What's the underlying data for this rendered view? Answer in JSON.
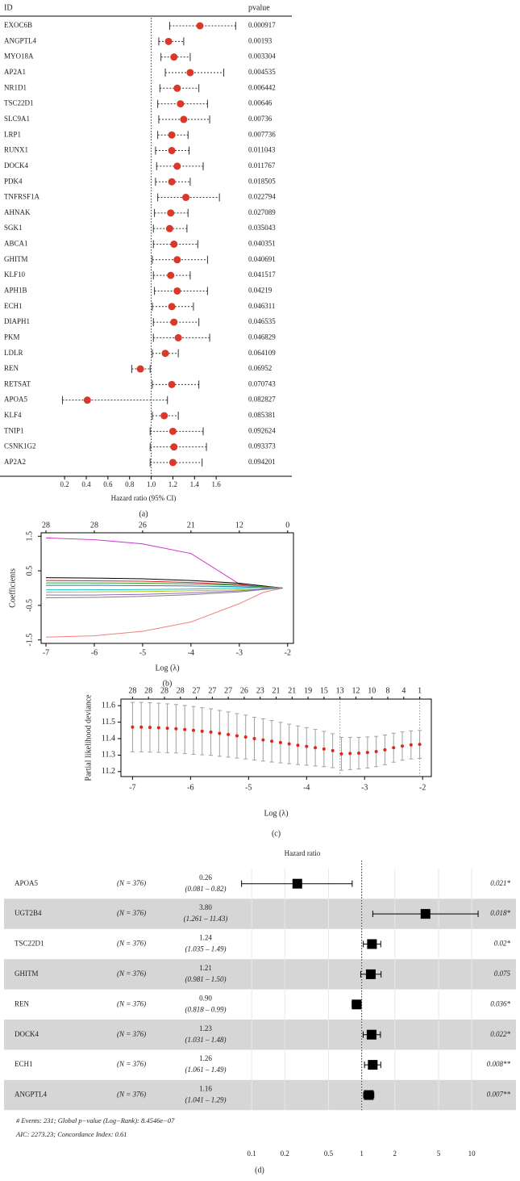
{
  "chart_data": [
    {
      "type": "forest",
      "header": [
        "ID",
        "pvalue"
      ],
      "categories": [
        "EXOC6B",
        "ANGPTL4",
        "MYO18A",
        "AP2A1",
        "NR1D1",
        "TSC22D1",
        "SLC9A1",
        "LRP1",
        "RUNX1",
        "DOCK4",
        "PDK4",
        "TNFRSF1A",
        "AHNAK",
        "SGK1",
        "ABCA1",
        "GHITM",
        "KLF10",
        "APH1B",
        "ECH1",
        "DIAPH1",
        "PKM",
        "LDLR",
        "REN",
        "RETSAT",
        "APOA5",
        "KLF4",
        "TNIP1",
        "CSNK1G2",
        "AP2A2"
      ],
      "pvalues": [
        0.000917,
        0.00193,
        0.003304,
        0.004535,
        0.006442,
        0.00646,
        0.00736,
        0.007736,
        0.011043,
        0.011767,
        0.018505,
        0.022794,
        0.027089,
        0.035043,
        0.040351,
        0.040691,
        0.041517,
        0.04219,
        0.046311,
        0.046535,
        0.046829,
        0.064109,
        0.06952,
        0.070743,
        0.082827,
        0.085381,
        0.092624,
        0.093373,
        0.094201
      ],
      "values": [
        1.45,
        1.16,
        1.21,
        1.36,
        1.24,
        1.27,
        1.3,
        1.19,
        1.19,
        1.24,
        1.19,
        1.32,
        1.18,
        1.17,
        1.21,
        1.24,
        1.18,
        1.24,
        1.19,
        1.21,
        1.25,
        1.13,
        0.9,
        1.19,
        0.41,
        1.12,
        1.2,
        1.21,
        1.2
      ],
      "lower": [
        1.17,
        1.07,
        1.09,
        1.13,
        1.08,
        1.06,
        1.07,
        1.06,
        1.04,
        1.05,
        1.04,
        1.06,
        1.03,
        1.02,
        1.02,
        1.01,
        1.02,
        1.03,
        1.01,
        1.02,
        1.02,
        1.01,
        0.82,
        1.01,
        0.18,
        1.01,
        0.99,
        0.99,
        0.99
      ],
      "upper": [
        1.78,
        1.3,
        1.36,
        1.67,
        1.44,
        1.52,
        1.54,
        1.34,
        1.35,
        1.48,
        1.36,
        1.63,
        1.34,
        1.33,
        1.43,
        1.52,
        1.36,
        1.52,
        1.39,
        1.44,
        1.54,
        1.25,
        0.99,
        1.44,
        1.15,
        1.25,
        1.48,
        1.51,
        1.47
      ],
      "color": "#d9382a",
      "ref": 1,
      "xlim": [
        0.05,
        1.8
      ],
      "xticks": [
        0.2,
        0.4,
        0.6,
        0.8,
        {
          "value": 1,
          "label": "1.0"
        },
        1.2,
        1.4,
        1.6
      ],
      "xlabel": "Hazard ratio (95% CI)",
      "label": "(a)"
    },
    {
      "type": "line",
      "x": [
        -7,
        -6,
        -5,
        -4,
        -3,
        -2.5,
        -2.1
      ],
      "series": [
        {
          "color": "#cc33cc",
          "values": [
            1.45,
            1.4,
            1.28,
            1.0,
            0.12,
            0,
            0
          ]
        },
        {
          "color": "#f08080",
          "values": [
            -1.42,
            -1.38,
            -1.25,
            -0.98,
            -0.45,
            -0.12,
            0
          ]
        },
        {
          "color": "#000000",
          "values": [
            0.3,
            0.29,
            0.27,
            0.22,
            0.14,
            0.06,
            0
          ]
        },
        {
          "color": "#e41a1c",
          "values": [
            0.22,
            0.21,
            0.2,
            0.16,
            0.1,
            0.04,
            0
          ]
        },
        {
          "color": "#33a02c",
          "values": [
            0.15,
            0.15,
            0.14,
            0.12,
            0.08,
            0.04,
            0
          ]
        },
        {
          "color": "#1f78b4",
          "values": [
            0.08,
            0.08,
            0.07,
            0.06,
            0.04,
            0.02,
            0
          ]
        },
        {
          "color": "#17becf",
          "values": [
            -0.05,
            -0.05,
            -0.04,
            -0.03,
            0,
            0.02,
            0
          ]
        },
        {
          "color": "#bcbd22",
          "values": [
            -0.12,
            -0.11,
            -0.1,
            -0.08,
            -0.05,
            -0.02,
            0
          ]
        },
        {
          "color": "#9467bd",
          "values": [
            -0.2,
            -0.2,
            -0.18,
            -0.14,
            -0.08,
            -0.03,
            0
          ]
        },
        {
          "color": "#7f7f7f",
          "values": [
            -0.28,
            -0.27,
            -0.24,
            -0.19,
            -0.11,
            -0.04,
            0
          ]
        }
      ],
      "xlim": [
        -7.1,
        -1.88
      ],
      "xticks": [
        -7,
        -6,
        -5,
        -4,
        -3,
        -2
      ],
      "top_ticks": [
        {
          "value": -7,
          "label": "28"
        },
        {
          "value": -6,
          "label": "28"
        },
        {
          "value": -5,
          "label": "26"
        },
        {
          "value": -4,
          "label": "21"
        },
        {
          "value": -3,
          "label": "12"
        },
        {
          "value": -2,
          "label": "0"
        }
      ],
      "ylim": [
        -1.6,
        1.6
      ],
      "yticks": [
        -1.5,
        -0.5,
        0.5,
        1.5
      ],
      "xlabel": "Log (λ)",
      "ylabel": "Coefficients",
      "label": "(b)"
    },
    {
      "type": "errorbar",
      "x": [
        -7,
        -6.85,
        -6.7,
        -6.55,
        -6.4,
        -6.25,
        -6.1,
        -5.95,
        -5.8,
        -5.65,
        -5.5,
        -5.35,
        -5.2,
        -5.05,
        -4.9,
        -4.75,
        -4.6,
        -4.45,
        -4.3,
        -4.15,
        -4,
        -3.85,
        -3.7,
        -3.55,
        -3.4,
        -3.25,
        -3.1,
        -2.95,
        -2.8,
        -2.65,
        -2.5,
        -2.35,
        -2.2,
        -2.05
      ],
      "values": [
        11.47,
        11.47,
        11.468,
        11.466,
        11.463,
        11.46,
        11.455,
        11.45,
        11.445,
        11.44,
        11.432,
        11.425,
        11.417,
        11.41,
        11.4,
        11.392,
        11.384,
        11.376,
        11.368,
        11.36,
        11.353,
        11.345,
        11.337,
        11.327,
        11.308,
        11.31,
        11.312,
        11.316,
        11.322,
        11.332,
        11.345,
        11.355,
        11.362,
        11.365
      ],
      "errors": [
        0.15,
        0.15,
        0.15,
        0.149,
        0.148,
        0.147,
        0.146,
        0.145,
        0.143,
        0.141,
        0.139,
        0.137,
        0.135,
        0.133,
        0.13,
        0.128,
        0.126,
        0.123,
        0.12,
        0.117,
        0.114,
        0.111,
        0.107,
        0.103,
        0.1,
        0.098,
        0.096,
        0.094,
        0.092,
        0.09,
        0.088,
        0.086,
        0.085,
        0.085
      ],
      "color": "#e0261b",
      "bar_color": "#a0a0a0",
      "vlines": [
        -3.425,
        -2.05
      ],
      "xlim": [
        -7.2,
        -1.85
      ],
      "xticks": [
        -7,
        -6,
        -5,
        -4,
        -3,
        -2
      ],
      "top_ticks": [
        {
          "value": -7,
          "label": "28"
        },
        {
          "value": -6.725,
          "label": "28"
        },
        {
          "value": -6.45,
          "label": "28"
        },
        {
          "value": -6.175,
          "label": "28"
        },
        {
          "value": -5.9,
          "label": "27"
        },
        {
          "value": -5.625,
          "label": "27"
        },
        {
          "value": -5.35,
          "label": "27"
        },
        {
          "value": -5.075,
          "label": "26"
        },
        {
          "value": -4.8,
          "label": "23"
        },
        {
          "value": -4.525,
          "label": "21"
        },
        {
          "value": -4.25,
          "label": "21"
        },
        {
          "value": -3.975,
          "label": "19"
        },
        {
          "value": -3.7,
          "label": "15"
        },
        {
          "value": -3.425,
          "label": "13"
        },
        {
          "value": -3.15,
          "label": "12"
        },
        {
          "value": -2.875,
          "label": "10"
        },
        {
          "value": -2.6,
          "label": "8"
        },
        {
          "value": -2.325,
          "label": "4"
        },
        {
          "value": -2.05,
          "label": "1"
        }
      ],
      "ylim": [
        11.17,
        11.64
      ],
      "yticks": [
        11.2,
        11.3,
        11.4,
        11.5,
        11.6
      ],
      "xlabel": "Log (λ)",
      "ylabel": "Partial likelihood deviance",
      "label": "(c)"
    },
    {
      "type": "forest_table",
      "title": "Hazard ratio",
      "categories": [
        "APOA5",
        "UGT2B4",
        "TSC22D1",
        "GHITM",
        "REN",
        "DOCK4",
        "ECH1",
        "ANGPTL4"
      ],
      "n_labels": [
        "(N = 376)",
        "(N = 376)",
        "(N = 376)",
        "(N = 376)",
        "(N = 376)",
        "(N = 376)",
        "(N = 376)",
        "(N = 376)"
      ],
      "values": [
        0.26,
        3.8,
        1.24,
        1.21,
        0.9,
        1.23,
        1.26,
        1.16
      ],
      "value_labels": [
        "0.26",
        "3.80",
        "1.24",
        "1.21",
        "0.90",
        "1.23",
        "1.26",
        "1.16"
      ],
      "lower": [
        0.081,
        1.261,
        1.035,
        0.981,
        0.818,
        1.031,
        1.061,
        1.041
      ],
      "upper": [
        0.82,
        11.43,
        1.49,
        1.5,
        0.99,
        1.48,
        1.49,
        1.29
      ],
      "ci_labels": [
        "(0.081 – 0.82)",
        "(1.261 – 11.43)",
        "(1.035 – 1.49)",
        "(0.981 – 1.50)",
        "(0.818 – 0.99)",
        "(1.031 – 1.48)",
        "(1.061 – 1.49)",
        "(1.041 – 1.29)"
      ],
      "p_labels": [
        "0.021*",
        "0.018*",
        "0.02*",
        "0.075",
        "0.036*",
        "0.022*",
        "0.008**",
        "0.007**"
      ],
      "color": "#000000",
      "band_color": "#d6d6d6",
      "log": true,
      "ref": 1,
      "xlim": [
        0.07,
        16
      ],
      "xticks": [
        0.1,
        0.2,
        0.5,
        1,
        2,
        5,
        10
      ],
      "footnotes": [
        "# Events: 231; Global p−value (Log−Rank): 8.4546e−07",
        "AIC: 2273.23; Concordance Index: 0.61"
      ],
      "label": "(d)"
    }
  ]
}
